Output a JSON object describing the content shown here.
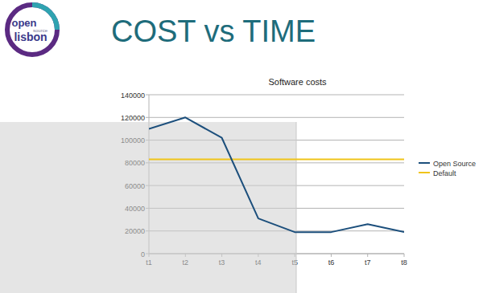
{
  "slide": {
    "title": "COST vs TIME",
    "logo": [
      "open",
      "source",
      "lisbon"
    ]
  },
  "chart_data": {
    "type": "line",
    "title": "Software costs",
    "categories": [
      "t1",
      "t2",
      "t3",
      "t4",
      "t5",
      "t6",
      "t7",
      "t8"
    ],
    "series": [
      {
        "name": "Open Source",
        "color": "#1c4f7c",
        "values": [
          110000,
          120000,
          102000,
          31000,
          19000,
          19000,
          26000,
          19000
        ]
      },
      {
        "name": "Default",
        "color": "#f0c419",
        "values": [
          83000,
          83000,
          83000,
          83000,
          83000,
          83000,
          83000,
          83000
        ]
      }
    ],
    "ylim": [
      0,
      140000
    ],
    "yticks": [
      0,
      20000,
      40000,
      60000,
      80000,
      100000,
      120000,
      140000
    ],
    "grid": true,
    "legend": "right"
  }
}
